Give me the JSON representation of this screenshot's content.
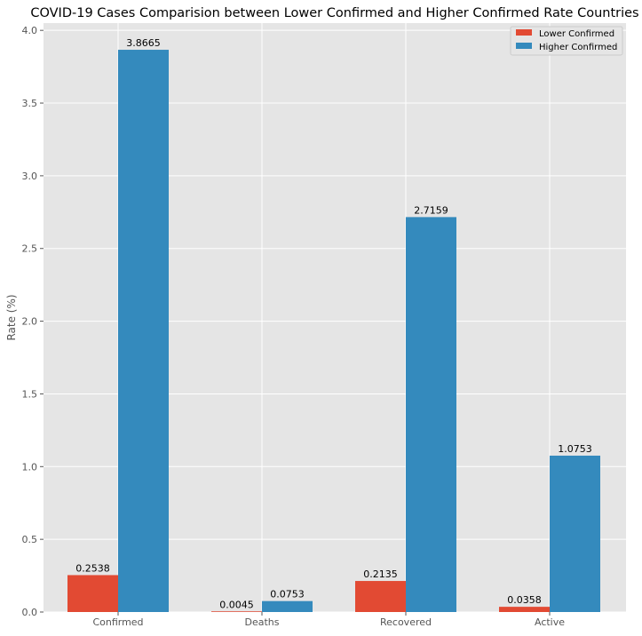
{
  "chart_data": {
    "type": "bar",
    "title": "COVID-19 Cases Comparision between Lower Confirmed and Higher Confirmed Rate Countries",
    "xlabel": "",
    "ylabel": "Rate (%)",
    "categories": [
      "Confirmed",
      "Deaths",
      "Recovered",
      "Active"
    ],
    "series": [
      {
        "name": "Lower Confirmed",
        "values": [
          0.2538,
          0.0045,
          0.2135,
          0.0358
        ],
        "labels": [
          "0.2538",
          "0.0045",
          "0.2135",
          "0.0358"
        ],
        "color": "#E24A33"
      },
      {
        "name": "Higher Confirmed",
        "values": [
          3.8665,
          0.0753,
          2.7159,
          1.0753
        ],
        "labels": [
          "3.8665",
          "0.0753",
          "2.7159",
          "1.0753"
        ],
        "color": "#348ABD"
      }
    ],
    "ylim": [
      0,
      4.05
    ],
    "yticks": [
      0.0,
      0.5,
      1.0,
      1.5,
      2.0,
      2.5,
      3.0,
      3.5,
      4.0
    ],
    "ytick_labels": [
      "0.0",
      "0.5",
      "1.0",
      "1.5",
      "2.0",
      "2.5",
      "3.0",
      "3.5",
      "4.0"
    ],
    "grid": true,
    "legend_position": "top-right",
    "style": {
      "background": "#E5E5E5",
      "grid_color": "#FFFFFF",
      "tick_label_color": "#555555",
      "title_color": "#000000",
      "label_color": "#555555",
      "legend_background": "#E5E5E5",
      "legend_border": "#CCCCCC"
    }
  }
}
